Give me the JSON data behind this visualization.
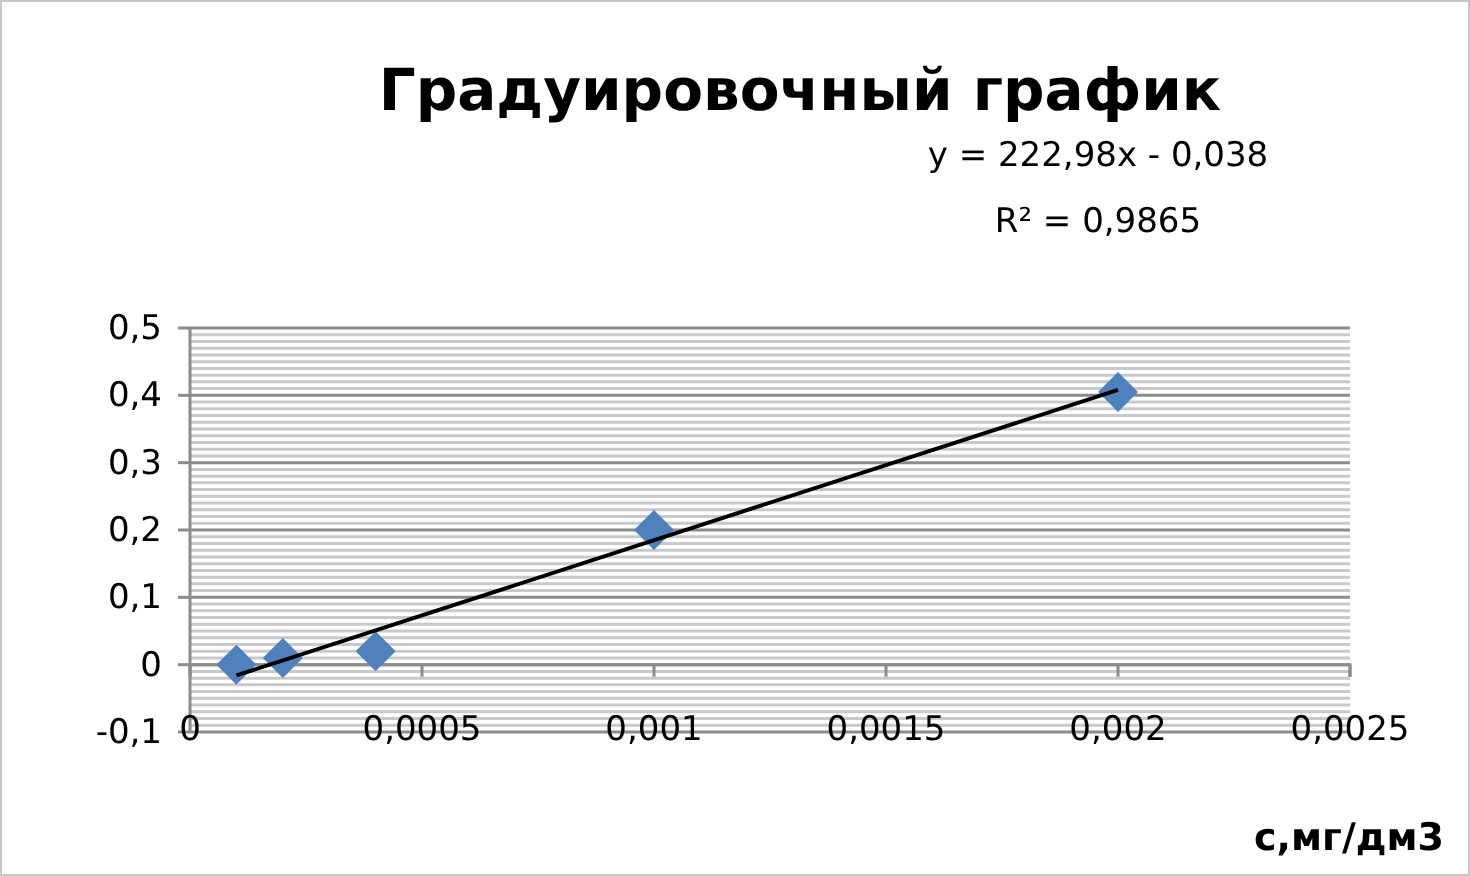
{
  "chart_data": {
    "type": "scatter",
    "title": "Градуировочный график",
    "xlabel": "с,мг/дм3",
    "annotations": [
      "y = 222,98x - 0,038",
      "R² = 0,9865"
    ],
    "series": [
      {
        "color": "#4f81bd",
        "marker": "diamond",
        "x": [
          0.0001,
          0.0002,
          0.0004,
          0.001,
          0.002
        ],
        "values": [
          0,
          0.01,
          0.02,
          0.2,
          0.405
        ]
      },
      {
        "type": "line",
        "color": "#000000",
        "marker": "none",
        "line_style": "solid",
        "x": [
          0.0001,
          0.002
        ],
        "values": [
          -0.016,
          0.408
        ]
      }
    ],
    "xlim": [
      0,
      0.0025
    ],
    "xticks": [
      0,
      {
        "value": 0.0005,
        "label": "0,0005"
      },
      {
        "value": 0.001,
        "label": "0,001"
      },
      {
        "value": 0.0015,
        "label": "0,0015"
      },
      {
        "value": 0.002,
        "label": "0,002"
      },
      {
        "value": 0.0025,
        "label": "0,0025"
      }
    ],
    "ylim": [
      -0.1,
      0.5
    ],
    "yticks": [
      {
        "value": -0.1,
        "label": "-0,1"
      },
      0,
      {
        "value": 0.1,
        "label": "0,1"
      },
      {
        "value": 0.2,
        "label": "0,2"
      },
      {
        "value": 0.3,
        "label": "0,3"
      },
      {
        "value": 0.4,
        "label": "0,4"
      },
      {
        "value": 0.5,
        "label": "0,5"
      }
    ],
    "grid": "y"
  }
}
